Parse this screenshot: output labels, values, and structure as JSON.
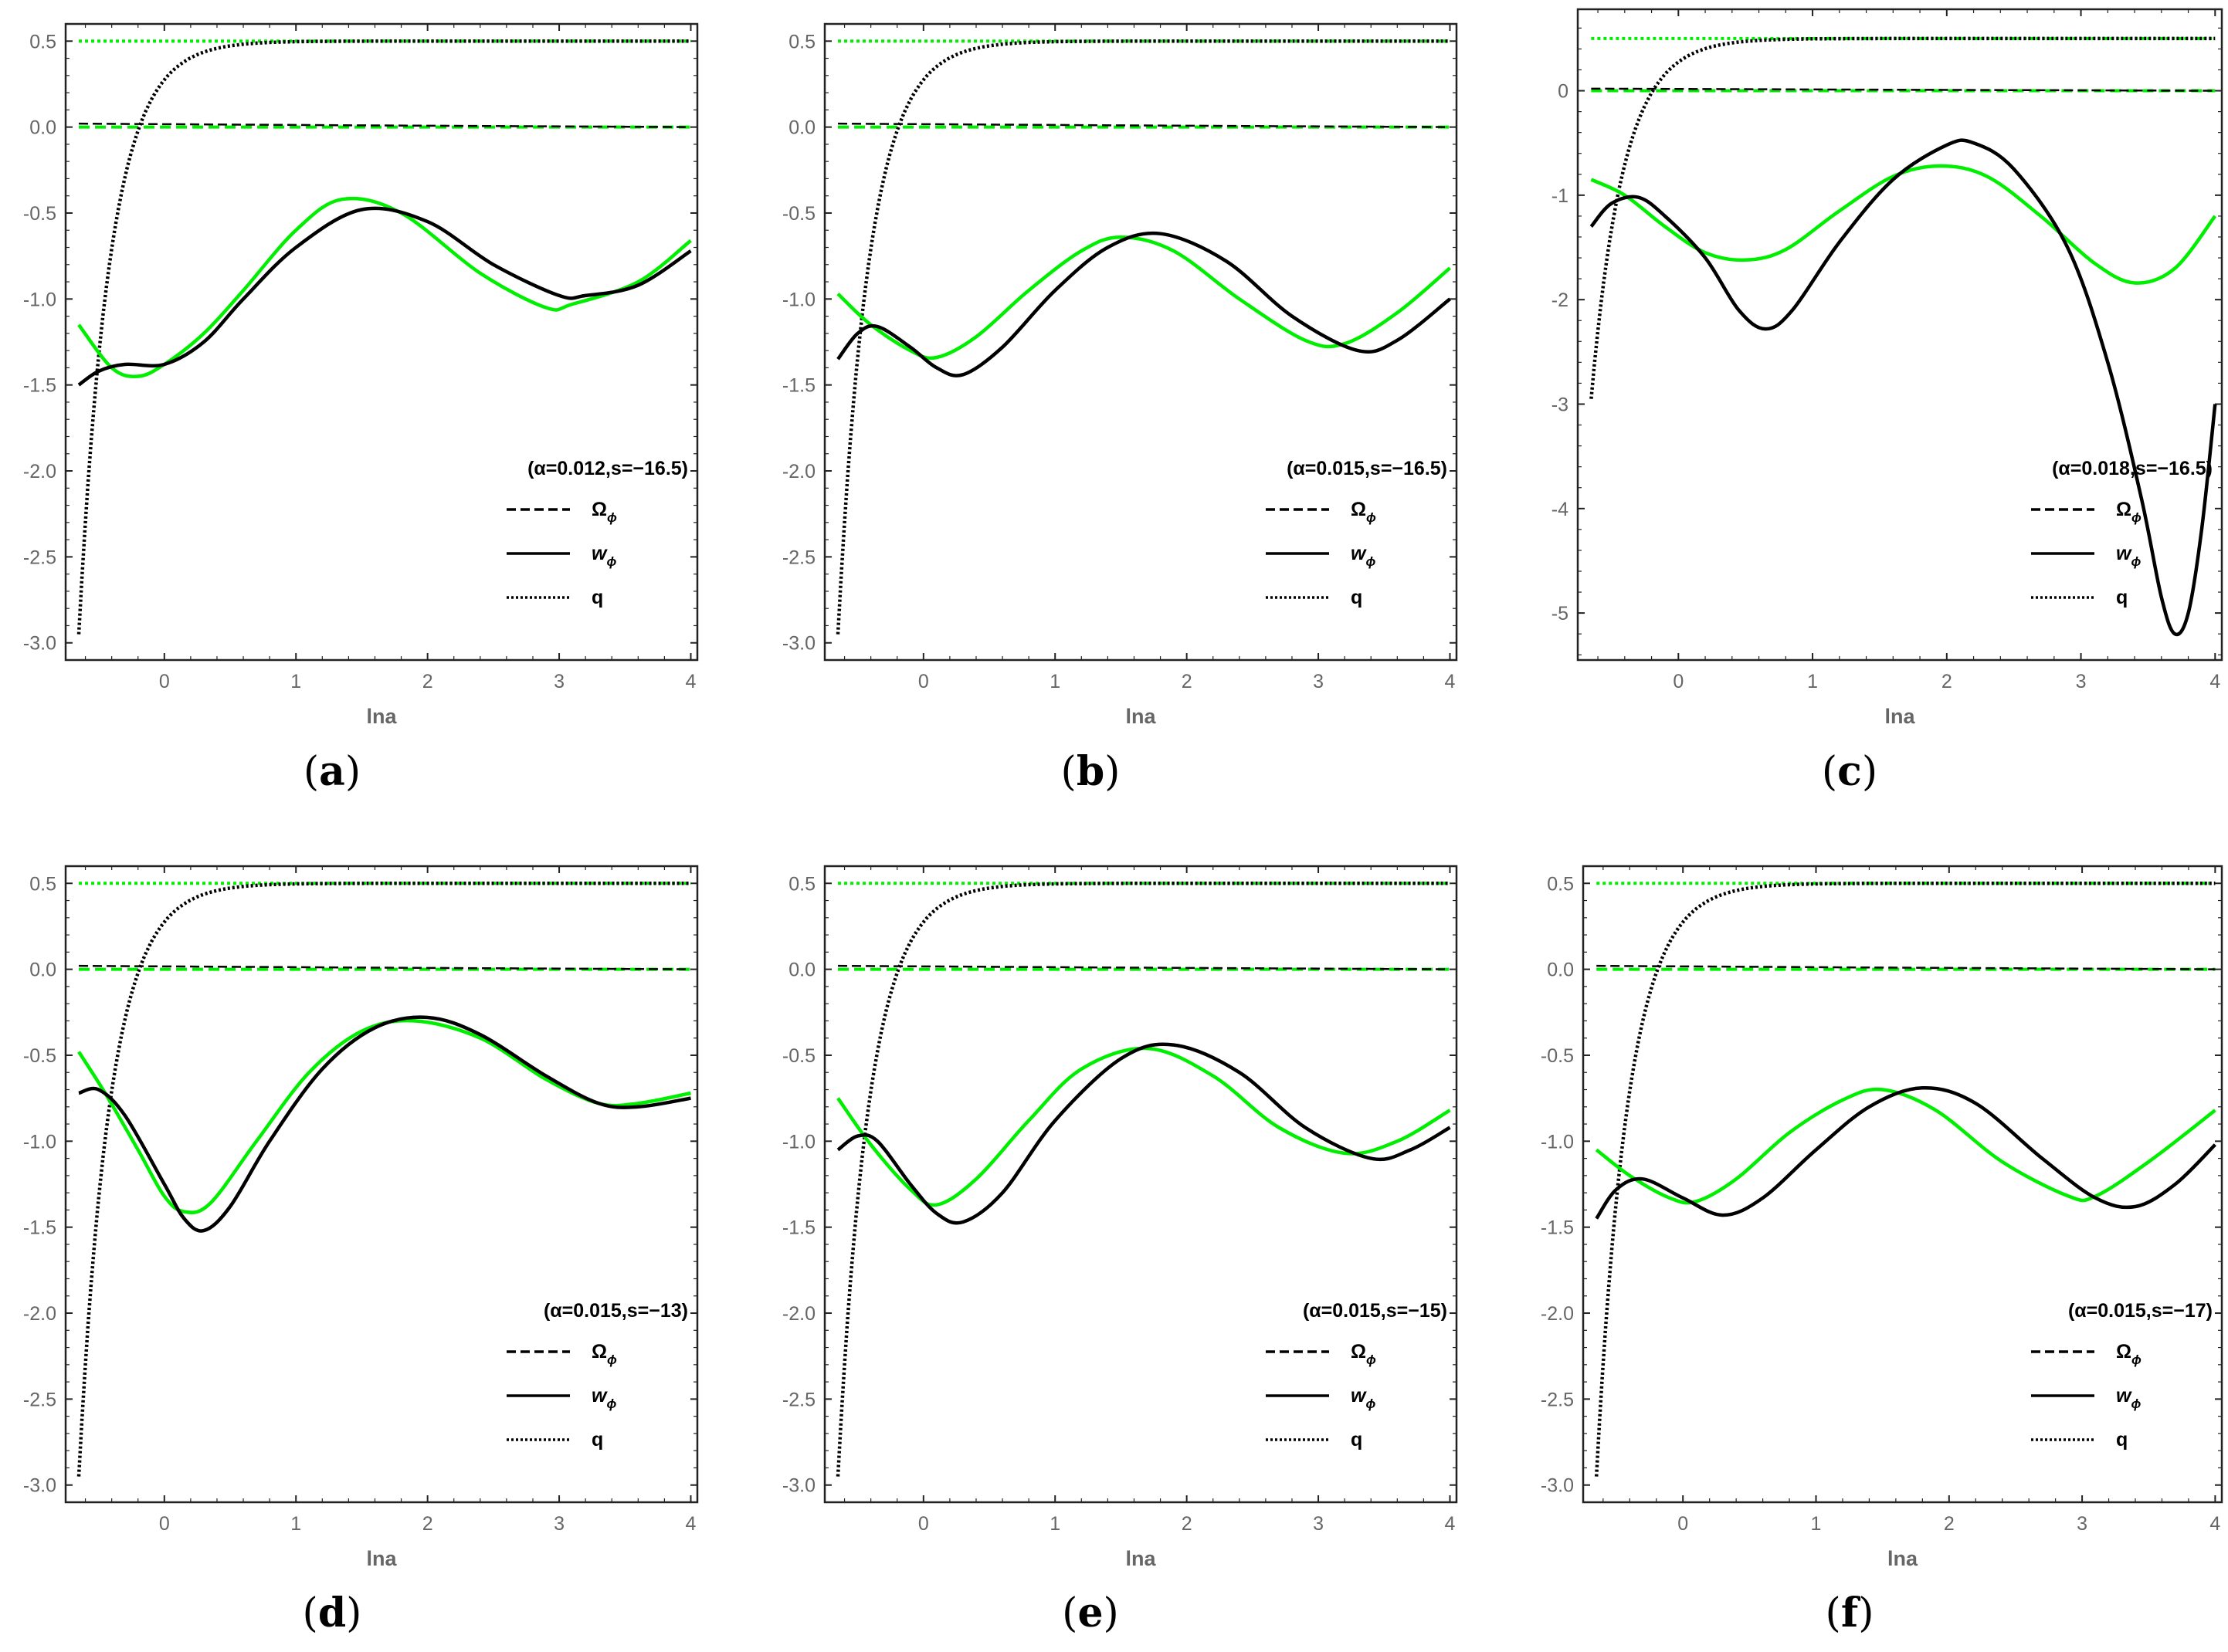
{
  "colors": {
    "model": "#000000",
    "comparison": "#00ee00",
    "frame": "#222222",
    "tick_label": "#666666"
  },
  "legend": {
    "items": [
      {
        "label": "Ω",
        "subscript": "ϕ",
        "style": "dashed"
      },
      {
        "label": "w",
        "subscript": "ϕ",
        "style": "solid",
        "italic": true
      },
      {
        "label": "q",
        "subscript": "",
        "style": "dotted"
      }
    ],
    "placement": "bottom-right"
  },
  "chart_data": [
    {
      "id": "a",
      "caption_letter": "a",
      "type": "line",
      "legend_title": "(α=0.012,s=−16.5)",
      "xlabel": "lna",
      "xlim": [
        -0.75,
        4.05
      ],
      "ylim": [
        -3.1,
        0.6
      ],
      "xticks": [
        0,
        1,
        2,
        3,
        4
      ],
      "xtick_labels": [
        "0",
        "1",
        "2",
        "3",
        "4"
      ],
      "yticks": [
        0.5,
        0,
        -0.5,
        -1,
        -1.5,
        -2,
        -2.5,
        -3
      ],
      "ytick_labels": [
        "0.5",
        "0.0",
        "-0.5",
        "-1.0",
        "-1.5",
        "-2.0",
        "-2.5",
        "-3.0"
      ],
      "omega_model": 0.02,
      "omega_ref": 0.0,
      "w_model": {
        "x0": -0.65,
        "points": [
          [
            -0.65,
            -1.5
          ],
          [
            -0.5,
            -1.42
          ],
          [
            -0.3,
            -1.38
          ],
          [
            0,
            -1.38
          ],
          [
            0.3,
            -1.25
          ],
          [
            0.6,
            -1.0
          ],
          [
            1.0,
            -0.7
          ],
          [
            1.5,
            -0.48
          ],
          [
            2.0,
            -0.55
          ],
          [
            2.5,
            -0.8
          ],
          [
            3.0,
            -0.98
          ],
          [
            3.2,
            -0.98
          ],
          [
            3.6,
            -0.92
          ],
          [
            4.0,
            -0.72
          ]
        ]
      },
      "w_ref": {
        "x0": -0.65,
        "points": [
          [
            -0.65,
            -1.15
          ],
          [
            -0.4,
            -1.4
          ],
          [
            -0.2,
            -1.45
          ],
          [
            0,
            -1.38
          ],
          [
            0.3,
            -1.2
          ],
          [
            0.6,
            -0.95
          ],
          [
            1.0,
            -0.6
          ],
          [
            1.35,
            -0.42
          ],
          [
            1.8,
            -0.5
          ],
          [
            2.4,
            -0.85
          ],
          [
            2.9,
            -1.05
          ],
          [
            3.1,
            -1.03
          ],
          [
            3.6,
            -0.9
          ],
          [
            4.0,
            -0.66
          ]
        ]
      },
      "q_model": {
        "x0": -0.65,
        "start": -2.95,
        "end": 0.5,
        "rate": 4.2
      },
      "q_ref": 0.5
    },
    {
      "id": "b",
      "caption_letter": "b",
      "type": "line",
      "legend_title": "(α=0.015,s=−16.5)",
      "xlabel": "lna",
      "xlim": [
        -0.75,
        4.05
      ],
      "ylim": [
        -3.1,
        0.6
      ],
      "xticks": [
        0,
        1,
        2,
        3,
        4
      ],
      "xtick_labels": [
        "0",
        "1",
        "2",
        "3",
        "4"
      ],
      "yticks": [
        0.5,
        0,
        -0.5,
        -1,
        -1.5,
        -2,
        -2.5,
        -3
      ],
      "ytick_labels": [
        "0.5",
        "0.0",
        "-0.5",
        "-1.0",
        "-1.5",
        "-2.0",
        "-2.5",
        "-3.0"
      ],
      "omega_model": 0.02,
      "omega_ref": 0.0,
      "w_model": {
        "x0": -0.65,
        "points": [
          [
            -0.65,
            -1.35
          ],
          [
            -0.5,
            -1.2
          ],
          [
            -0.35,
            -1.16
          ],
          [
            -0.1,
            -1.28
          ],
          [
            0.1,
            -1.4
          ],
          [
            0.3,
            -1.44
          ],
          [
            0.6,
            -1.28
          ],
          [
            1.0,
            -0.95
          ],
          [
            1.4,
            -0.7
          ],
          [
            1.8,
            -0.62
          ],
          [
            2.3,
            -0.78
          ],
          [
            2.8,
            -1.1
          ],
          [
            3.3,
            -1.3
          ],
          [
            3.6,
            -1.24
          ],
          [
            4.0,
            -1.0
          ]
        ]
      },
      "w_ref": {
        "x0": -0.65,
        "points": [
          [
            -0.65,
            -0.97
          ],
          [
            -0.4,
            -1.15
          ],
          [
            -0.1,
            -1.3
          ],
          [
            0.1,
            -1.34
          ],
          [
            0.4,
            -1.22
          ],
          [
            0.8,
            -0.95
          ],
          [
            1.2,
            -0.72
          ],
          [
            1.5,
            -0.64
          ],
          [
            1.9,
            -0.72
          ],
          [
            2.4,
            -1.0
          ],
          [
            2.9,
            -1.24
          ],
          [
            3.2,
            -1.26
          ],
          [
            3.6,
            -1.08
          ],
          [
            4.0,
            -0.82
          ]
        ]
      },
      "q_model": {
        "x0": -0.65,
        "start": -2.95,
        "end": 0.5,
        "rate": 4.2
      },
      "q_ref": 0.5
    },
    {
      "id": "c",
      "caption_letter": "c",
      "type": "line",
      "legend_title": "(α=0.018,s=−16.5)",
      "xlabel": "lna",
      "xlim": [
        -0.75,
        4.05
      ],
      "ylim": [
        -5.45,
        0.78
      ],
      "xticks": [
        0,
        1,
        2,
        3,
        4
      ],
      "xtick_labels": [
        "0",
        "1",
        "2",
        "3",
        "4"
      ],
      "yticks": [
        0,
        -1,
        -2,
        -3,
        -4,
        -5
      ],
      "ytick_labels": [
        "0",
        "-1",
        "-2",
        "-3",
        "-4",
        "-5"
      ],
      "omega_model": 0.02,
      "omega_ref": 0.0,
      "w_model": {
        "x0": -0.65,
        "points": [
          [
            -0.65,
            -1.3
          ],
          [
            -0.5,
            -1.08
          ],
          [
            -0.3,
            -1.02
          ],
          [
            -0.1,
            -1.2
          ],
          [
            0.2,
            -1.6
          ],
          [
            0.45,
            -2.1
          ],
          [
            0.65,
            -2.28
          ],
          [
            0.85,
            -2.1
          ],
          [
            1.2,
            -1.45
          ],
          [
            1.6,
            -0.85
          ],
          [
            2.0,
            -0.52
          ],
          [
            2.2,
            -0.5
          ],
          [
            2.5,
            -0.75
          ],
          [
            2.9,
            -1.5
          ],
          [
            3.2,
            -2.6
          ],
          [
            3.45,
            -3.9
          ],
          [
            3.6,
            -4.85
          ],
          [
            3.7,
            -5.2
          ],
          [
            3.8,
            -5.0
          ],
          [
            3.9,
            -4.2
          ],
          [
            4.0,
            -3.0
          ]
        ]
      },
      "w_ref": {
        "x0": -0.65,
        "points": [
          [
            -0.65,
            -0.85
          ],
          [
            -0.4,
            -1.0
          ],
          [
            -0.1,
            -1.3
          ],
          [
            0.2,
            -1.55
          ],
          [
            0.5,
            -1.62
          ],
          [
            0.8,
            -1.52
          ],
          [
            1.2,
            -1.15
          ],
          [
            1.6,
            -0.82
          ],
          [
            1.95,
            -0.72
          ],
          [
            2.3,
            -0.82
          ],
          [
            2.7,
            -1.2
          ],
          [
            3.1,
            -1.65
          ],
          [
            3.4,
            -1.84
          ],
          [
            3.7,
            -1.7
          ],
          [
            4.0,
            -1.2
          ]
        ]
      },
      "q_model": {
        "x0": -0.65,
        "start": -2.95,
        "end": 0.5,
        "rate": 4.2
      },
      "q_ref": 0.5
    },
    {
      "id": "d",
      "caption_letter": "d",
      "type": "line",
      "legend_title": "(α=0.015,s=−13)",
      "xlabel": "lna",
      "xlim": [
        -0.75,
        4.05
      ],
      "ylim": [
        -3.1,
        0.6
      ],
      "xticks": [
        0,
        1,
        2,
        3,
        4
      ],
      "xtick_labels": [
        "0",
        "1",
        "2",
        "3",
        "4"
      ],
      "yticks": [
        0.5,
        0,
        -0.5,
        -1,
        -1.5,
        -2,
        -2.5,
        -3
      ],
      "ytick_labels": [
        "0.5",
        "0.0",
        "-0.5",
        "-1.0",
        "-1.5",
        "-2.0",
        "-2.5",
        "-3.0"
      ],
      "omega_model": 0.02,
      "omega_ref": 0.0,
      "w_model": {
        "x0": -0.65,
        "points": [
          [
            -0.65,
            -0.72
          ],
          [
            -0.5,
            -0.7
          ],
          [
            -0.3,
            -0.85
          ],
          [
            0,
            -1.25
          ],
          [
            0.15,
            -1.45
          ],
          [
            0.3,
            -1.52
          ],
          [
            0.5,
            -1.38
          ],
          [
            0.8,
            -1.0
          ],
          [
            1.2,
            -0.58
          ],
          [
            1.6,
            -0.34
          ],
          [
            2.0,
            -0.28
          ],
          [
            2.4,
            -0.38
          ],
          [
            2.9,
            -0.62
          ],
          [
            3.3,
            -0.78
          ],
          [
            3.6,
            -0.8
          ],
          [
            4.0,
            -0.75
          ]
        ]
      },
      "w_ref": {
        "x0": -0.65,
        "points": [
          [
            -0.65,
            -0.48
          ],
          [
            -0.45,
            -0.72
          ],
          [
            -0.2,
            -1.05
          ],
          [
            0,
            -1.32
          ],
          [
            0.15,
            -1.41
          ],
          [
            0.35,
            -1.36
          ],
          [
            0.7,
            -1.0
          ],
          [
            1.1,
            -0.6
          ],
          [
            1.5,
            -0.36
          ],
          [
            1.9,
            -0.3
          ],
          [
            2.4,
            -0.4
          ],
          [
            2.9,
            -0.64
          ],
          [
            3.3,
            -0.78
          ],
          [
            3.6,
            -0.78
          ],
          [
            4.0,
            -0.72
          ]
        ]
      },
      "q_model": {
        "x0": -0.65,
        "start": -2.95,
        "end": 0.5,
        "rate": 4.2
      },
      "q_ref": 0.5
    },
    {
      "id": "e",
      "caption_letter": "e",
      "type": "line",
      "legend_title": "(α=0.015,s=−15)",
      "xlabel": "lna",
      "xlim": [
        -0.75,
        4.05
      ],
      "ylim": [
        -3.1,
        0.6
      ],
      "xticks": [
        0,
        1,
        2,
        3,
        4
      ],
      "xtick_labels": [
        "0",
        "1",
        "2",
        "3",
        "4"
      ],
      "yticks": [
        0.5,
        0,
        -0.5,
        -1,
        -1.5,
        -2,
        -2.5,
        -3
      ],
      "ytick_labels": [
        "0.5",
        "0.0",
        "-0.5",
        "-1.0",
        "-1.5",
        "-2.0",
        "-2.5",
        "-3.0"
      ],
      "omega_model": 0.02,
      "omega_ref": 0.0,
      "w_model": {
        "x0": -0.65,
        "points": [
          [
            -0.65,
            -1.05
          ],
          [
            -0.5,
            -0.97
          ],
          [
            -0.35,
            -1.0
          ],
          [
            -0.1,
            -1.25
          ],
          [
            0.1,
            -1.42
          ],
          [
            0.3,
            -1.47
          ],
          [
            0.6,
            -1.3
          ],
          [
            1.0,
            -0.88
          ],
          [
            1.5,
            -0.52
          ],
          [
            1.9,
            -0.44
          ],
          [
            2.4,
            -0.6
          ],
          [
            2.9,
            -0.92
          ],
          [
            3.4,
            -1.1
          ],
          [
            3.7,
            -1.05
          ],
          [
            4.0,
            -0.92
          ]
        ]
      },
      "w_ref": {
        "x0": -0.65,
        "points": [
          [
            -0.65,
            -0.75
          ],
          [
            -0.4,
            -1.02
          ],
          [
            -0.1,
            -1.28
          ],
          [
            0.1,
            -1.37
          ],
          [
            0.4,
            -1.22
          ],
          [
            0.8,
            -0.88
          ],
          [
            1.2,
            -0.58
          ],
          [
            1.7,
            -0.46
          ],
          [
            2.2,
            -0.62
          ],
          [
            2.7,
            -0.92
          ],
          [
            3.2,
            -1.07
          ],
          [
            3.6,
            -1.0
          ],
          [
            4.0,
            -0.82
          ]
        ]
      },
      "q_model": {
        "x0": -0.65,
        "start": -2.95,
        "end": 0.5,
        "rate": 4.2
      },
      "q_ref": 0.5
    },
    {
      "id": "f",
      "caption_letter": "f",
      "type": "line",
      "legend_title": "(α=0.015,s=−17)",
      "xlabel": "lna",
      "xlim": [
        -0.75,
        4.05
      ],
      "ylim": [
        -3.1,
        0.6
      ],
      "xticks": [
        0,
        1,
        2,
        3,
        4
      ],
      "xtick_labels": [
        "0",
        "1",
        "2",
        "3",
        "4"
      ],
      "yticks": [
        0.5,
        0,
        -0.5,
        -1,
        -1.5,
        -2,
        -2.5,
        -3
      ],
      "ytick_labels": [
        "0.5",
        "0.0",
        "-0.5",
        "-1.0",
        "-1.5",
        "-2.0",
        "-2.5",
        "-3.0"
      ],
      "omega_model": 0.02,
      "omega_ref": 0.0,
      "w_model": {
        "x0": -0.65,
        "points": [
          [
            -0.65,
            -1.45
          ],
          [
            -0.5,
            -1.28
          ],
          [
            -0.3,
            -1.22
          ],
          [
            0,
            -1.33
          ],
          [
            0.3,
            -1.43
          ],
          [
            0.6,
            -1.33
          ],
          [
            1.0,
            -1.05
          ],
          [
            1.4,
            -0.8
          ],
          [
            1.8,
            -0.69
          ],
          [
            2.2,
            -0.78
          ],
          [
            2.7,
            -1.1
          ],
          [
            3.1,
            -1.33
          ],
          [
            3.4,
            -1.38
          ],
          [
            3.7,
            -1.25
          ],
          [
            4.0,
            -1.02
          ]
        ]
      },
      "w_ref": {
        "x0": -0.65,
        "points": [
          [
            -0.65,
            -1.05
          ],
          [
            -0.4,
            -1.2
          ],
          [
            -0.1,
            -1.33
          ],
          [
            0.1,
            -1.35
          ],
          [
            0.4,
            -1.22
          ],
          [
            0.8,
            -0.95
          ],
          [
            1.2,
            -0.76
          ],
          [
            1.5,
            -0.7
          ],
          [
            1.9,
            -0.82
          ],
          [
            2.4,
            -1.12
          ],
          [
            2.9,
            -1.32
          ],
          [
            3.1,
            -1.32
          ],
          [
            3.5,
            -1.12
          ],
          [
            4.0,
            -0.82
          ]
        ]
      },
      "q_model": {
        "x0": -0.65,
        "start": -2.95,
        "end": 0.5,
        "rate": 4.2
      },
      "q_ref": 0.5
    }
  ]
}
